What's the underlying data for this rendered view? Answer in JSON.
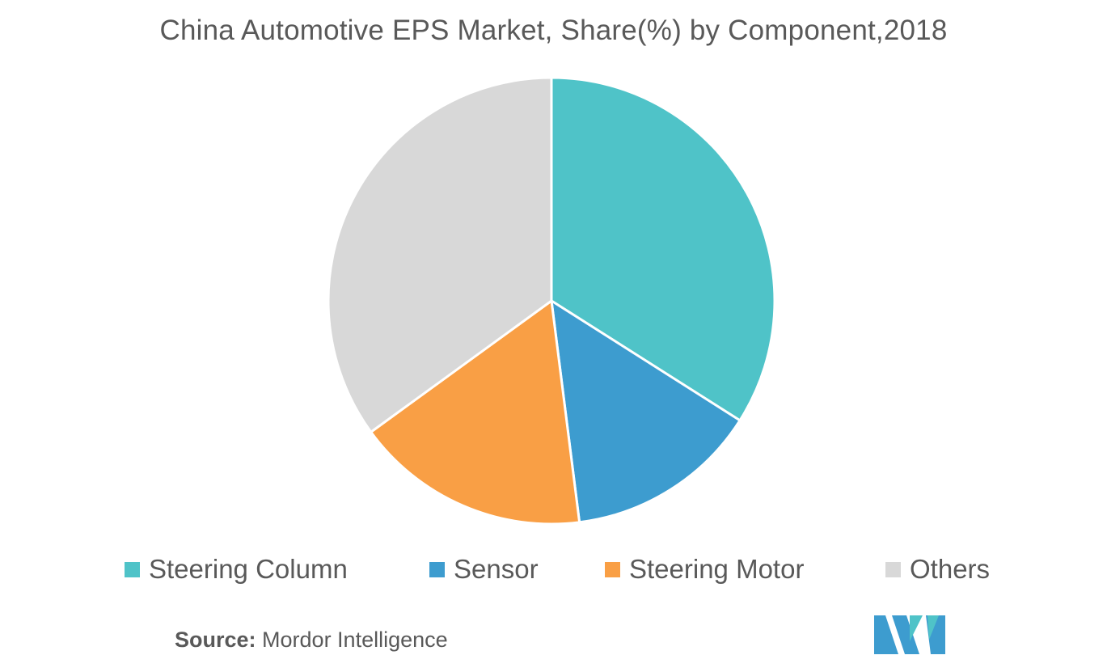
{
  "chart_data": {
    "type": "pie",
    "title": "China Automotive EPS Market, Share(%) by Component,2018",
    "start_angle_deg": 0,
    "direction": "clockwise",
    "slices": [
      {
        "label": "Steering Column",
        "value": 34,
        "color": "#4fc3c8"
      },
      {
        "label": "Sensor",
        "value": 14,
        "color": "#3d9ccf"
      },
      {
        "label": "Steering Motor",
        "value": 17,
        "color": "#f99f45"
      },
      {
        "label": "Others",
        "value": 35,
        "color": "#d8d8d8"
      }
    ],
    "legend_position": "bottom"
  },
  "source": {
    "key": "Source:",
    "value": " Mordor Intelligence"
  },
  "logo": {
    "colors": [
      "#3d9ccf",
      "#4fc3c8"
    ]
  }
}
